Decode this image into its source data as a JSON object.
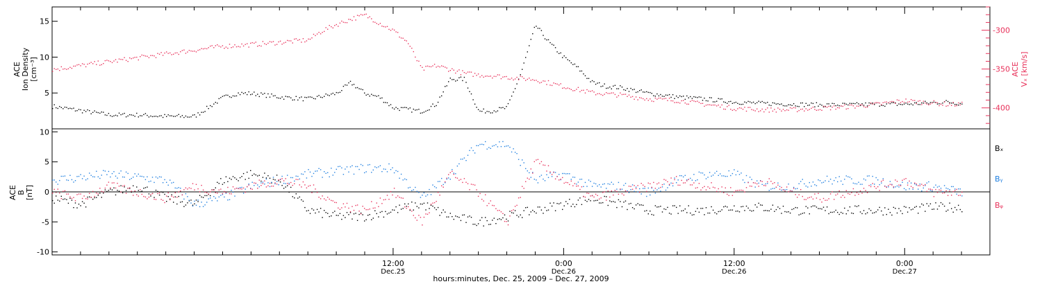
{
  "chart_data": [
    {
      "type": "scatter",
      "panel": "top",
      "ylabel_left": [
        "ACE",
        "Ion Density",
        "[cm⁻³]"
      ],
      "ylabel_right": [
        "ACE",
        "Vₓ [km/s]"
      ],
      "ylim_left": [
        0,
        17
      ],
      "yticks_left": [
        5,
        10,
        15
      ],
      "ylim_right": [
        -427,
        -270
      ],
      "yticks_right": [
        -300,
        -350,
        -400
      ],
      "x_unit": "hours since 00:00 Dec. 25, 2009",
      "xlim": [
        -12,
        54
      ],
      "series": [
        {
          "axis": "left",
          "color": "#000000",
          "x": [
            -12,
            -10,
            -8,
            -6,
            -4,
            -2,
            0,
            1,
            2,
            4,
            6,
            8,
            9,
            10,
            11,
            12,
            14,
            15,
            16,
            17,
            18,
            19,
            20,
            21,
            22,
            23,
            24,
            25,
            26,
            27,
            28,
            30,
            32,
            34,
            36,
            38,
            40,
            42,
            44,
            46,
            48,
            49,
            50,
            51,
            52
          ],
          "values": [
            3.2,
            2.6,
            2,
            2,
            1.8,
            1.8,
            4.4,
            5,
            5,
            4.5,
            4.2,
            5,
            6.5,
            5,
            4.5,
            3,
            2.5,
            3.5,
            7,
            7,
            2.5,
            2.6,
            3,
            8,
            14.5,
            12,
            10,
            8.5,
            6.5,
            6,
            5.8,
            5,
            4.5,
            4.2,
            3.8,
            3.6,
            3.5,
            3.4,
            3.4,
            3.5,
            3.5,
            3.6,
            3.7,
            3.8,
            3.6
          ]
        },
        {
          "axis": "right",
          "color": "#e8315a",
          "x": [
            -12,
            -10,
            -8,
            -6,
            -4,
            -2,
            0,
            2,
            4,
            6,
            7,
            8,
            9,
            10,
            11,
            12,
            13,
            14,
            15,
            16,
            17,
            18,
            19,
            20,
            22,
            24,
            26,
            28,
            30,
            32,
            34,
            36,
            38,
            40,
            42,
            44,
            46,
            48,
            49,
            50,
            51,
            52
          ],
          "values": [
            -350,
            -345,
            -340,
            -335,
            -330,
            -325,
            -320,
            -318,
            -315,
            -312,
            -300,
            -292,
            -285,
            -280,
            -290,
            -300,
            -315,
            -350,
            -345,
            -350,
            -355,
            -357,
            -358,
            -360,
            -363,
            -372,
            -380,
            -383,
            -388,
            -390,
            -395,
            -400,
            -402,
            -402,
            -400,
            -398,
            -395,
            -390,
            -392,
            -393,
            -395,
            -395
          ]
        }
      ]
    },
    {
      "type": "scatter",
      "panel": "bottom",
      "ylabel": [
        "ACE",
        "B",
        "[nT]"
      ],
      "ylim": [
        -10.5,
        10.5
      ],
      "yticks": [
        -10,
        -5,
        0,
        5,
        10
      ],
      "zero_line": true,
      "x_unit": "hours since 00:00 Dec. 25, 2009",
      "xlim": [
        -12,
        54
      ],
      "legend": [
        "Bₓ",
        "Bᵧ",
        "Bᵩ"
      ],
      "series": [
        {
          "name": "Bₓ",
          "color": "#000000",
          "x": [
            -12,
            -10,
            -8,
            -6,
            -4,
            -2,
            0,
            2,
            4,
            6,
            8,
            10,
            12,
            14,
            16,
            18,
            20,
            22,
            24,
            26,
            28,
            30,
            32,
            34,
            36,
            38,
            40,
            42,
            44,
            46,
            48,
            50,
            52
          ],
          "values": [
            -1,
            -2,
            0,
            1,
            -1,
            -2,
            2,
            3,
            2,
            -3,
            -4,
            -4,
            -3,
            -2,
            -4,
            -5,
            -4,
            -3,
            -2,
            -1,
            -2,
            -3,
            -3,
            -3,
            -2.5,
            -2.5,
            -3,
            -3,
            -3,
            -3,
            -3,
            -2.5,
            -2.5
          ]
        },
        {
          "name": "Bᵧ",
          "color": "#1f7fe0",
          "x": [
            -12,
            -10,
            -8,
            -6,
            -4,
            -2,
            0,
            2,
            4,
            6,
            8,
            10,
            12,
            14,
            16,
            18,
            20,
            22,
            24,
            26,
            28,
            30,
            32,
            34,
            36,
            38,
            40,
            42,
            44,
            46,
            48,
            50,
            52
          ],
          "values": [
            2,
            2.5,
            3,
            2.5,
            2,
            -2,
            -1,
            1,
            2,
            3,
            3.5,
            4,
            4,
            -1,
            3,
            8,
            8,
            2,
            3,
            1,
            1,
            0,
            2,
            3,
            3,
            1,
            1,
            2,
            2,
            2,
            1,
            1,
            0
          ]
        },
        {
          "name": "Bᵩ",
          "color": "#e8315a",
          "x": [
            -12,
            -10,
            -8,
            -6,
            -4,
            -2,
            0,
            2,
            4,
            6,
            8,
            10,
            12,
            14,
            16,
            18,
            20,
            22,
            24,
            26,
            28,
            30,
            32,
            34,
            36,
            38,
            40,
            42,
            44,
            46,
            48,
            50,
            52
          ],
          "values": [
            0,
            -1,
            1,
            0,
            -1,
            1,
            0,
            1,
            2,
            1,
            -2,
            -3,
            0,
            -5,
            3,
            0,
            -5,
            5,
            2,
            -1,
            0,
            1,
            2,
            1,
            0,
            2,
            0,
            -1,
            0,
            1,
            2,
            0,
            0
          ]
        }
      ],
      "xticks": [
        {
          "x": 12,
          "label": "12:00",
          "sublabel": "Dec.25"
        },
        {
          "x": 24,
          "label": "0:00",
          "sublabel": "Dec.26"
        },
        {
          "x": 36,
          "label": "12:00",
          "sublabel": "Dec.26"
        },
        {
          "x": 48,
          "label": "0:00",
          "sublabel": "Dec.27"
        }
      ],
      "xlabel": "hours:minutes, Dec. 25, 2009 – Dec. 27, 2009"
    }
  ]
}
